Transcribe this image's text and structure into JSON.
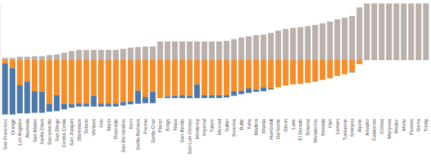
{
  "chart_data": {
    "type": "bar",
    "stacked": true,
    "tick_labels": "x",
    "categories": [
      "San Francisco",
      "Orange",
      "Los Angeles",
      "Alameda",
      "San Mateo",
      "Santa Clara",
      "Sacramento",
      "San Diego",
      "Contra Costa",
      "San Joaquin",
      "Stanislaus",
      "Solano",
      "Ventura",
      "Yolo",
      "Marin",
      "Riverside",
      "San Bernardino",
      "Kern",
      "Santa Barbara",
      "Fresno",
      "Santa Cruz",
      "Placer",
      "Kings",
      "Napa",
      "San Benito",
      "San Luis Obispo",
      "Monterey",
      "Imperial",
      "Tulare",
      "Merced",
      "Sutter",
      "Sonoma",
      "Butte",
      "Yuba",
      "Madera",
      "Shasta",
      "Humboldt",
      "Del Norte",
      "Glenn",
      "Lake",
      "El Dorado",
      "Tehama",
      "Mendocino",
      "Nevada",
      "Inyo",
      "Lassen",
      "Tuolumne",
      "Siskiyou",
      "Alpine",
      "Amador",
      "Calaveras",
      "Colusa",
      "Mariposa",
      "Modoc",
      "Mono",
      "Plumas",
      "Sierra",
      "Trinity"
    ],
    "series": [
      {
        "color": "#bab0ac",
        "values": [
          4,
          4,
          6,
          6,
          7,
          7,
          9,
          10,
          13,
          16,
          18,
          18,
          18,
          18,
          18,
          18,
          20,
          22,
          23,
          24,
          24,
          33,
          33,
          33,
          33,
          33,
          33,
          33,
          33,
          33,
          34,
          37,
          40,
          42,
          44,
          45,
          48,
          52,
          55,
          57,
          58,
          60,
          62,
          65,
          68,
          72,
          75,
          78,
          93,
          100,
          100,
          100,
          100,
          100,
          100,
          100,
          100,
          100
        ]
      },
      {
        "color": "#f28e2b",
        "values": [
          -6,
          -14,
          -44,
          -38,
          -55,
          -56,
          -77,
          -62,
          -77,
          -78,
          -76,
          -77,
          -63,
          -77,
          -77,
          -77,
          -74,
          -73,
          -54,
          -65,
          -56,
          -67,
          -64,
          -63,
          -62,
          -63,
          -43,
          -62,
          -62,
          -62,
          -62,
          -55,
          -54,
          -50,
          -52,
          -48,
          -50,
          -48,
          -45,
          -43,
          -42,
          -40,
          -37,
          -35,
          -32,
          -28,
          -25,
          -21,
          -7,
          0,
          0,
          0,
          0,
          0,
          0,
          0,
          0,
          0
        ]
      },
      {
        "color": "#4e79a7",
        "values": [
          -90,
          -82,
          -50,
          -56,
          -38,
          -37,
          -14,
          -28,
          -10,
          -6,
          -6,
          -5,
          -19,
          -5,
          -5,
          -5,
          -6,
          -5,
          -23,
          -11,
          -20,
          0,
          -3,
          -4,
          -5,
          -4,
          -24,
          -5,
          -5,
          -5,
          -4,
          -8,
          -6,
          -8,
          -4,
          -7,
          -2,
          0,
          0,
          0,
          0,
          0,
          -1,
          0,
          0,
          0,
          0,
          -1,
          0,
          0,
          0,
          0,
          0,
          0,
          0,
          0,
          0,
          0
        ]
      }
    ],
    "ylim": [
      -100,
      100
    ]
  }
}
